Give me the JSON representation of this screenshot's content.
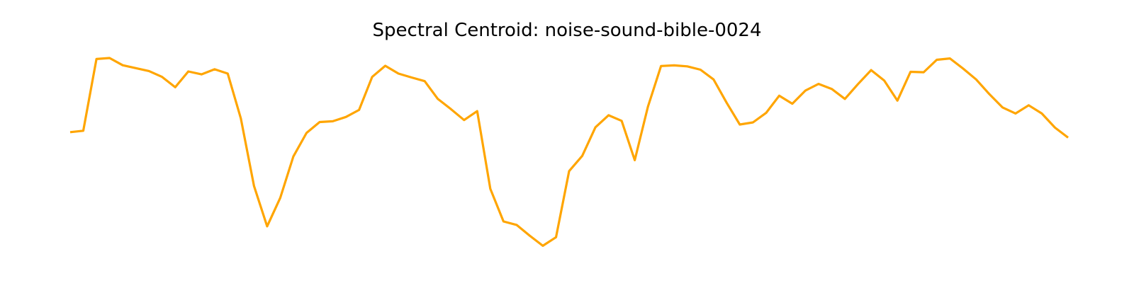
{
  "chart_data": {
    "type": "line",
    "title": "Spectral Centroid: noise-sound-bible-0024",
    "xlabel": "",
    "ylabel": "",
    "axes_visible": false,
    "grid": false,
    "legend": "none",
    "ylim": [
      0,
      1
    ],
    "color": "#ffa500",
    "series": [
      {
        "values": [
          0.619,
          0.626,
          0.995,
          1.0,
          0.963,
          0.948,
          0.933,
          0.903,
          0.85,
          0.931,
          0.916,
          0.942,
          0.92,
          0.69,
          0.342,
          0.135,
          0.281,
          0.494,
          0.615,
          0.671,
          0.675,
          0.697,
          0.733,
          0.903,
          0.96,
          0.92,
          0.9,
          0.881,
          0.79,
          0.737,
          0.681,
          0.727,
          0.328,
          0.16,
          0.142,
          0.087,
          0.035,
          0.079,
          0.419,
          0.497,
          0.644,
          0.706,
          0.677,
          0.475,
          0.75,
          0.959,
          0.962,
          0.957,
          0.94,
          0.89,
          0.77,
          0.658,
          0.669,
          0.718,
          0.806,
          0.765,
          0.833,
          0.867,
          0.841,
          0.79,
          0.866,
          0.938,
          0.884,
          0.781,
          0.929,
          0.927,
          0.991,
          0.998,
          0.946,
          0.89,
          0.815,
          0.746,
          0.715,
          0.757,
          0.715,
          0.642,
          0.591
        ]
      }
    ]
  }
}
